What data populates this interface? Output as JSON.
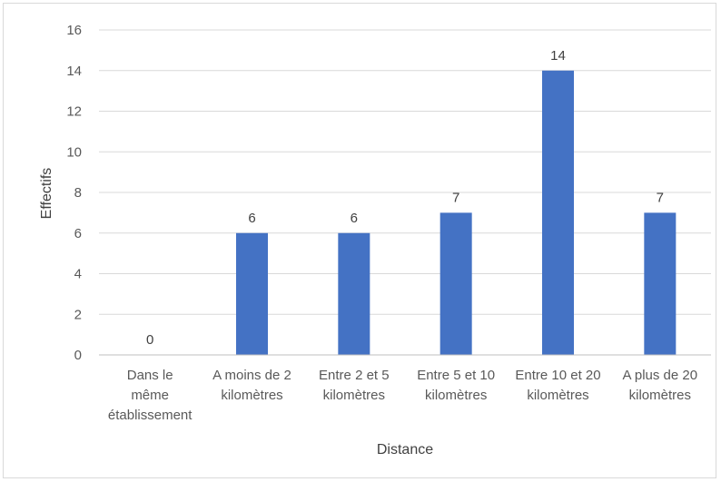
{
  "chart_data": {
    "type": "bar",
    "categories": [
      [
        "Dans le",
        "même",
        "établissement"
      ],
      [
        "A moins de 2",
        "kilomètres"
      ],
      [
        "Entre 2 et 5",
        "kilomètres"
      ],
      [
        "Entre 5 et 10",
        "kilomètres"
      ],
      [
        "Entre 10 et 20",
        "kilomètres"
      ],
      [
        "A plus de 20",
        "kilomètres"
      ]
    ],
    "values": [
      0,
      6,
      6,
      7,
      14,
      7
    ],
    "data_labels": [
      "0",
      "6",
      "6",
      "7",
      "14",
      "7"
    ],
    "xlabel": "Distance",
    "ylabel": "Effectifs",
    "ylim": [
      0,
      16
    ],
    "yticks": [
      0,
      2,
      4,
      6,
      8,
      10,
      12,
      14,
      16
    ],
    "grid": true,
    "legend": "none",
    "colors": {
      "bar": "#4472c4",
      "grid": "#d9d9d9",
      "axis": "#bfbfbf"
    }
  }
}
